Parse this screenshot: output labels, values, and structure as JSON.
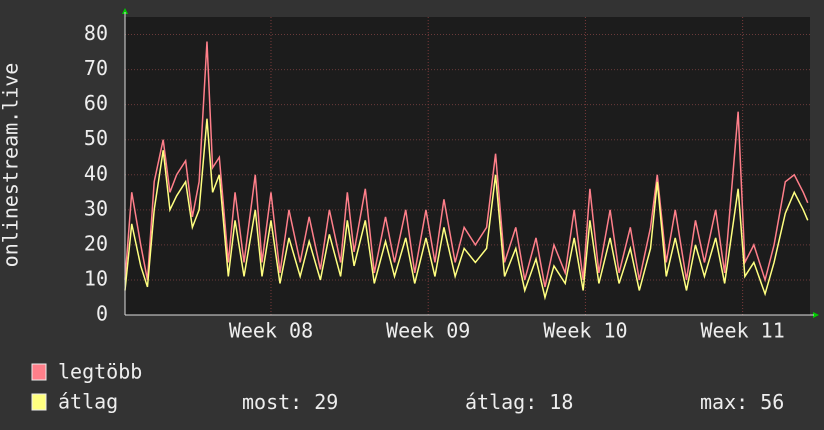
{
  "chart_data": {
    "type": "line",
    "y_label": "onlinestream.live",
    "x": [
      0,
      0.3,
      0.7,
      1.0,
      1.3,
      1.7,
      2.0,
      2.3,
      2.7,
      3.0,
      3.3,
      3.65,
      3.9,
      4.2,
      4.6,
      4.9,
      5.3,
      5.8,
      6.1,
      6.5,
      6.9,
      7.3,
      7.8,
      8.2,
      8.7,
      9.1,
      9.6,
      9.9,
      10.2,
      10.7,
      11.1,
      11.6,
      12.0,
      12.5,
      12.9,
      13.4,
      13.8,
      14.2,
      14.7,
      15.1,
      15.6,
      16.1,
      16.5,
      16.9,
      17.4,
      17.8,
      18.3,
      18.7,
      19.1,
      19.6,
      20.0,
      20.4,
      20.7,
      21.1,
      21.6,
      22.0,
      22.5,
      22.9,
      23.4,
      23.7,
      24.1,
      24.5,
      25.0,
      25.4,
      25.8,
      26.3,
      26.7,
      27.3,
      27.6,
      28.0,
      28.5,
      28.9,
      29.4,
      29.8,
      30.2,
      30.4
    ],
    "series": [
      {
        "name": "legtöbb",
        "color": "#ff7f8a",
        "values": [
          10,
          35,
          20,
          10,
          38,
          50,
          35,
          40,
          44,
          28,
          38,
          78,
          42,
          45,
          15,
          35,
          15,
          40,
          15,
          35,
          12,
          30,
          15,
          28,
          13,
          30,
          15,
          35,
          18,
          36,
          12,
          28,
          15,
          30,
          12,
          30,
          15,
          33,
          15,
          25,
          20,
          25,
          46,
          15,
          25,
          10,
          22,
          8,
          20,
          12,
          30,
          10,
          36,
          12,
          30,
          12,
          25,
          10,
          25,
          40,
          15,
          30,
          10,
          27,
          15,
          30,
          12,
          58,
          15,
          20,
          10,
          20,
          38,
          40,
          35,
          32
        ]
      },
      {
        "name": "átlag",
        "color": "#ffff80",
        "values": [
          7,
          26,
          14,
          8,
          30,
          47,
          30,
          34,
          38,
          25,
          30,
          56,
          35,
          40,
          11,
          27,
          11,
          30,
          11,
          27,
          9,
          22,
          11,
          21,
          10,
          23,
          11,
          27,
          14,
          27,
          9,
          21,
          11,
          22,
          9,
          22,
          11,
          25,
          11,
          19,
          15,
          19,
          40,
          11,
          19,
          7,
          16,
          5,
          14,
          9,
          22,
          7,
          27,
          9,
          22,
          9,
          19,
          7,
          19,
          38,
          11,
          22,
          7,
          20,
          11,
          22,
          9,
          36,
          11,
          15,
          6,
          15,
          29,
          35,
          30,
          27
        ]
      }
    ],
    "xlim": [
      0,
      30.5
    ],
    "xticks": [
      {
        "value": 6.5,
        "label": "Week 08"
      },
      {
        "value": 13.5,
        "label": "Week 09"
      },
      {
        "value": 20.5,
        "label": "Week 10"
      },
      {
        "value": 27.5,
        "label": "Week 11"
      }
    ],
    "ylim": [
      0,
      85
    ],
    "yticks": [
      0,
      10,
      20,
      30,
      40,
      50,
      60,
      70,
      80
    ],
    "grid": true,
    "stats": [
      {
        "label": "most:",
        "value": 29
      },
      {
        "label": "átlag:",
        "value": 18
      },
      {
        "label": "max:",
        "value": 56
      }
    ]
  }
}
